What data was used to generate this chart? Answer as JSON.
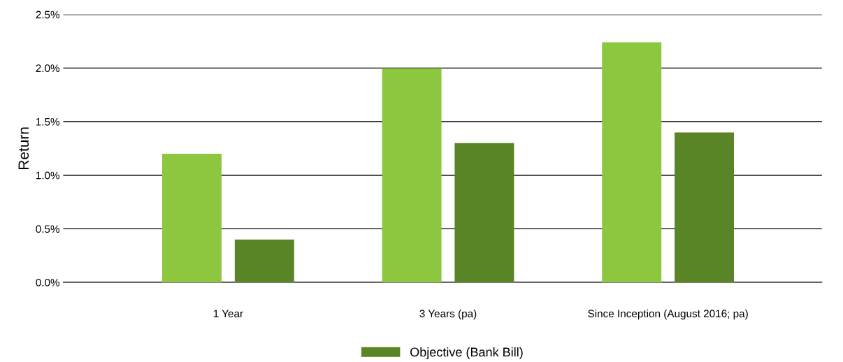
{
  "chart_data": {
    "type": "bar",
    "ylabel": "Return",
    "categories": [
      "1 Year",
      "3 Years (pa)",
      "Since Inception (August 2016; pa)"
    ],
    "series": [
      {
        "color": "#8dc63f",
        "values": [
          1.2,
          2.0,
          2.24
        ]
      },
      {
        "name": "Objective (Bank Bill)",
        "color": "#5a8527",
        "values": [
          0.4,
          1.3,
          1.4
        ]
      }
    ],
    "ylim": [
      0,
      2.5
    ],
    "yticks": [
      {
        "value": 0,
        "label": "0.0%"
      },
      {
        "value": 0.5,
        "label": "0.5%"
      },
      {
        "value": 1.0,
        "label": "1.0%"
      },
      {
        "value": 1.5,
        "label": "1.5%"
      },
      {
        "value": 2.0,
        "label": "2.0%"
      },
      {
        "value": 2.5,
        "label": "2.5%"
      }
    ],
    "grid": "y",
    "legend": "bottom"
  }
}
